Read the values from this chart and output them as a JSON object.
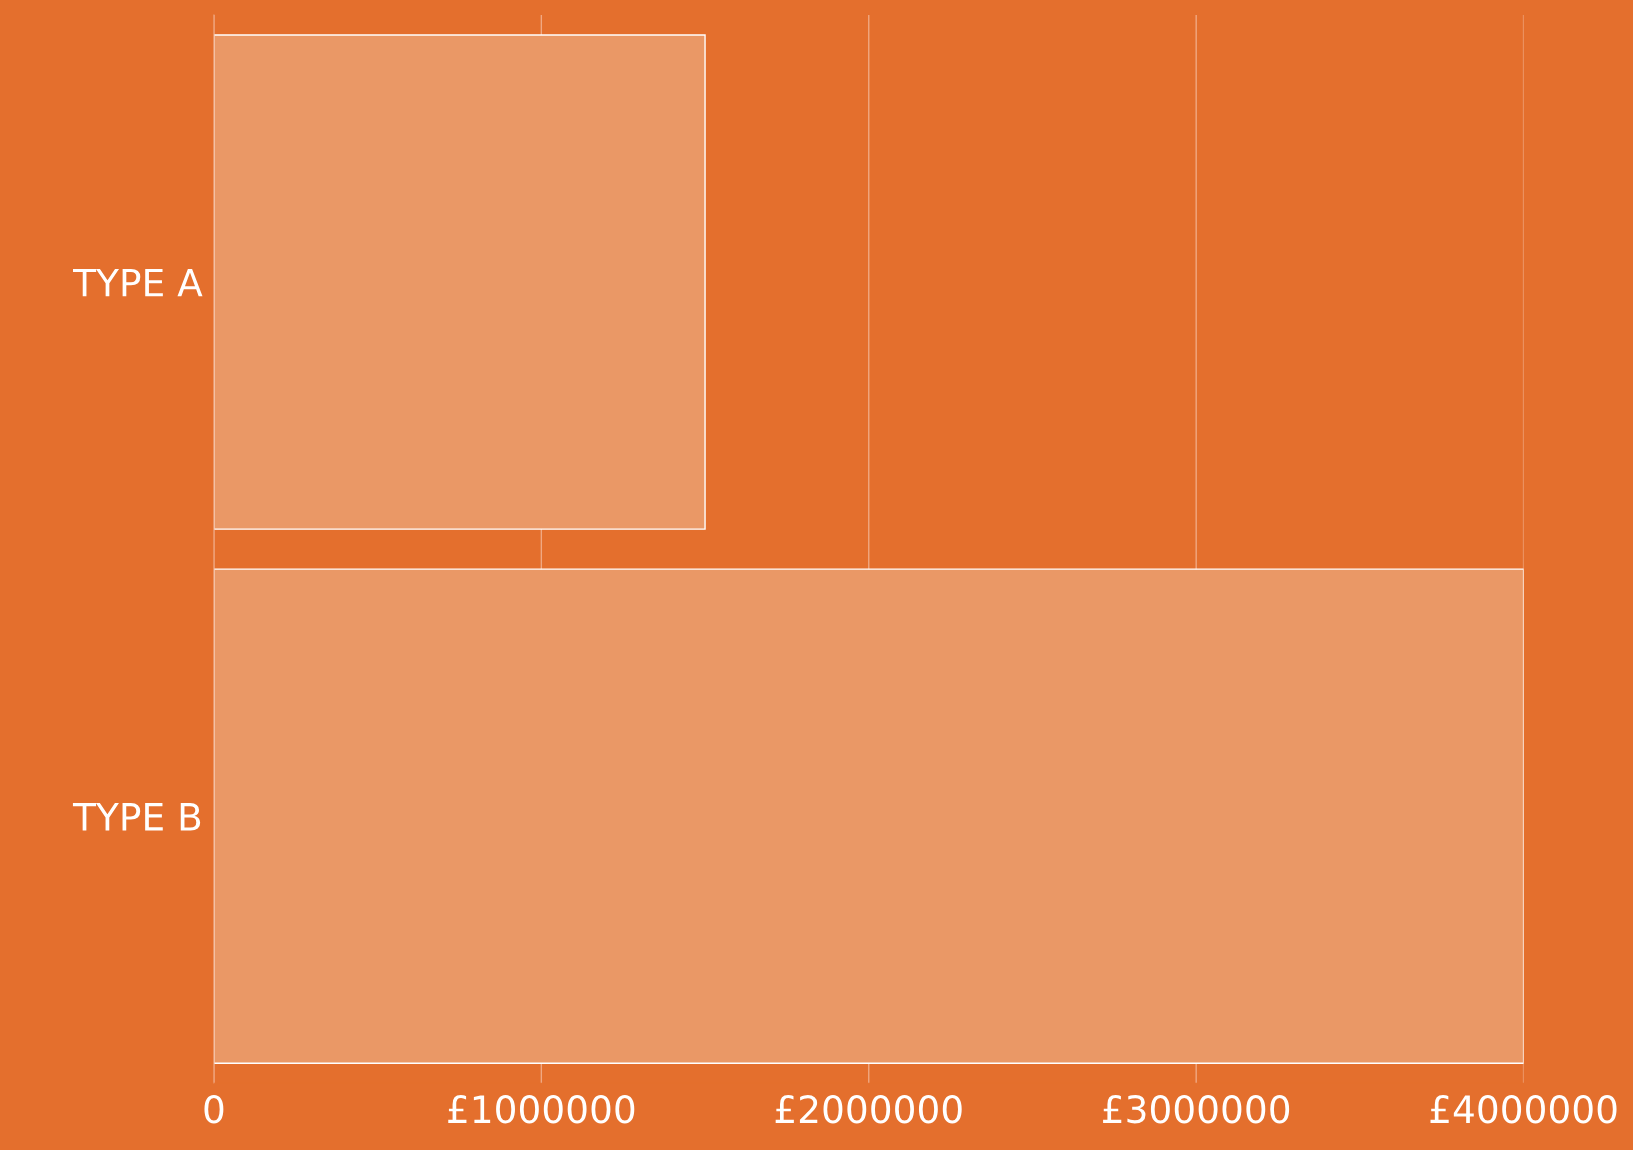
{
  "chart_data": {
    "type": "bar",
    "orientation": "horizontal",
    "categories": [
      "TYPE A",
      "TYPE B"
    ],
    "values": [
      1500000,
      4000000
    ],
    "color": "#ea9866",
    "xlim": [
      0,
      4000000
    ],
    "xticks": [
      0,
      {
        "value": 1000000,
        "label": "£1000000"
      },
      {
        "value": 2000000,
        "label": "£2000000"
      },
      {
        "value": 3000000,
        "label": "£3000000"
      },
      {
        "value": 4000000,
        "label": "£4000000"
      }
    ],
    "grid": "x",
    "legend": false
  }
}
